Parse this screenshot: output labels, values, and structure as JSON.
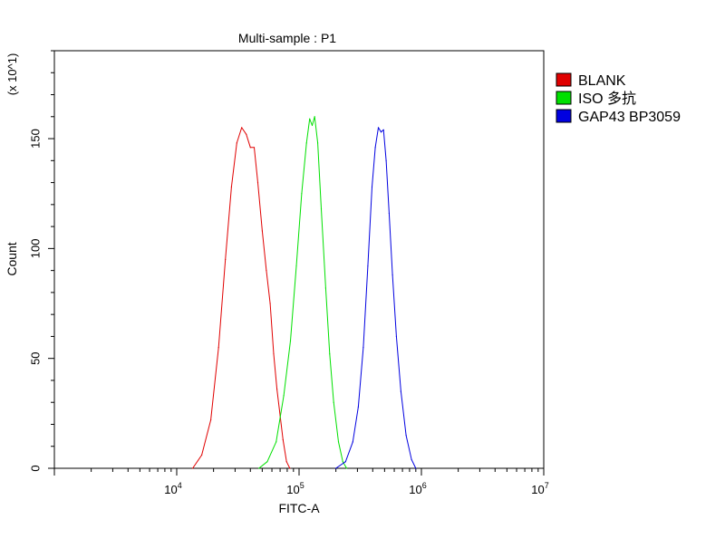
{
  "chart_data": {
    "type": "line",
    "title": "Multi-sample : P1",
    "xlabel": "FITC-A",
    "ylabel": "Count",
    "y_multiplier_label": "(x 10^1)",
    "x_scale": "log",
    "xlim": [
      1000,
      10000000
    ],
    "ylim": [
      0,
      190
    ],
    "x_ticks": [
      {
        "value": 10000,
        "base": "10",
        "exp": "4"
      },
      {
        "value": 100000,
        "base": "10",
        "exp": "5"
      },
      {
        "value": 1000000,
        "base": "10",
        "exp": "6"
      },
      {
        "value": 10000000,
        "base": "10",
        "exp": "7"
      }
    ],
    "y_ticks": [
      0,
      50,
      100,
      150
    ],
    "grid": false,
    "legend_position": "right",
    "series": [
      {
        "name": "BLANK",
        "color": "#e00000",
        "points": [
          [
            13500,
            0
          ],
          [
            16000,
            6
          ],
          [
            19000,
            22
          ],
          [
            22000,
            55
          ],
          [
            25000,
            95
          ],
          [
            28000,
            128
          ],
          [
            31000,
            148
          ],
          [
            34000,
            155
          ],
          [
            37000,
            152
          ],
          [
            40000,
            146
          ],
          [
            43000,
            146
          ],
          [
            46000,
            130
          ],
          [
            50000,
            108
          ],
          [
            54000,
            90
          ],
          [
            58000,
            75
          ],
          [
            62000,
            52
          ],
          [
            66000,
            36
          ],
          [
            70000,
            24
          ],
          [
            74000,
            13
          ],
          [
            79000,
            3
          ],
          [
            84000,
            0
          ]
        ]
      },
      {
        "name": "ISO 多抗",
        "color": "#00e000",
        "points": [
          [
            47000,
            0
          ],
          [
            55000,
            3
          ],
          [
            65000,
            12
          ],
          [
            75000,
            33
          ],
          [
            85000,
            58
          ],
          [
            95000,
            92
          ],
          [
            105000,
            125
          ],
          [
            115000,
            148
          ],
          [
            122000,
            159
          ],
          [
            128000,
            156
          ],
          [
            134000,
            160
          ],
          [
            142000,
            148
          ],
          [
            152000,
            118
          ],
          [
            165000,
            82
          ],
          [
            178000,
            52
          ],
          [
            192000,
            30
          ],
          [
            210000,
            12
          ],
          [
            228000,
            3
          ],
          [
            245000,
            0
          ]
        ]
      },
      {
        "name": "GAP43 BP3059",
        "color": "#0000e0",
        "points": [
          [
            200000,
            0
          ],
          [
            240000,
            3
          ],
          [
            275000,
            12
          ],
          [
            305000,
            28
          ],
          [
            335000,
            55
          ],
          [
            365000,
            92
          ],
          [
            395000,
            128
          ],
          [
            420000,
            146
          ],
          [
            445000,
            155
          ],
          [
            468000,
            153
          ],
          [
            490000,
            154
          ],
          [
            515000,
            140
          ],
          [
            545000,
            116
          ],
          [
            580000,
            88
          ],
          [
            625000,
            60
          ],
          [
            680000,
            35
          ],
          [
            750000,
            15
          ],
          [
            830000,
            4
          ],
          [
            900000,
            0
          ]
        ]
      }
    ]
  }
}
